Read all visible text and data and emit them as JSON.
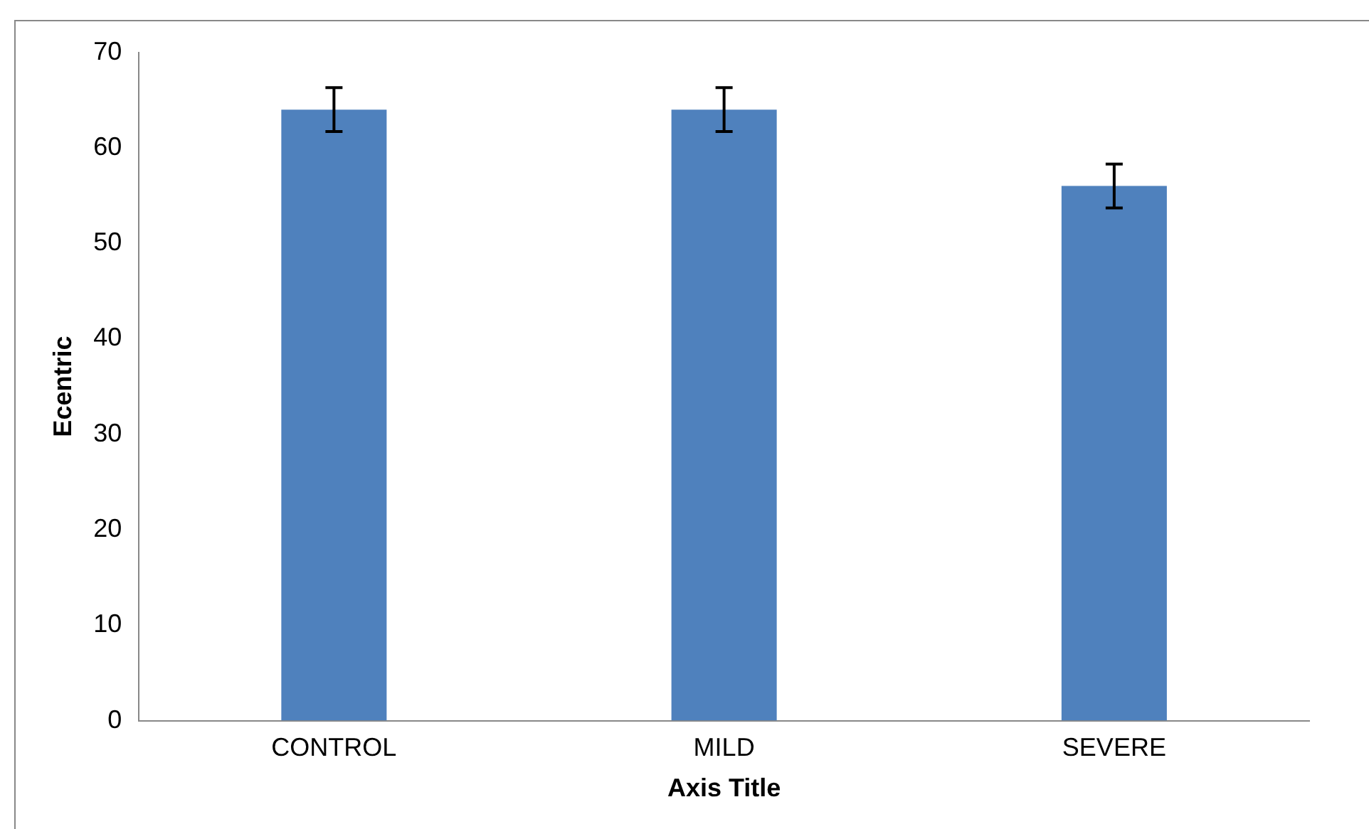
{
  "chart_data": {
    "type": "bar",
    "xlabel": "Axis Title",
    "ylabel": "Ecentric",
    "categories": [
      "CONTROL",
      "MILD",
      "SEVERE"
    ],
    "values": [
      64,
      64,
      56
    ],
    "errors": [
      2.3,
      2.3,
      2.3
    ],
    "color": "#4f81bd",
    "ylim": [
      0,
      70
    ],
    "yticks": [
      0,
      10,
      20,
      30,
      40,
      50,
      60,
      70
    ],
    "grid": false,
    "legend": false
  }
}
